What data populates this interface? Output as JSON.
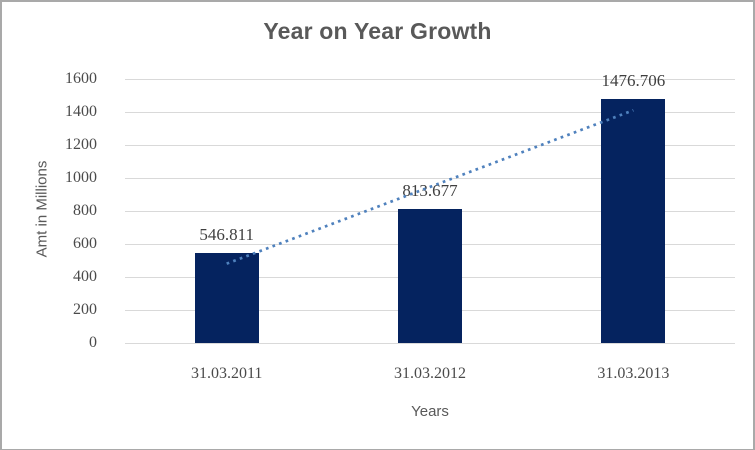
{
  "chart_data": {
    "type": "bar",
    "title": "Year on Year Growth",
    "xlabel": "Years",
    "ylabel": "Amt in Millions",
    "categories": [
      "31.03.2011",
      "31.03.2012",
      "31.03.2013"
    ],
    "values": [
      546.811,
      813.677,
      1476.706
    ],
    "data_labels": [
      "546.811",
      "813.677",
      "1476.706"
    ],
    "ylim": [
      0,
      1600
    ],
    "ytick_step": 200,
    "yticks": [
      0,
      200,
      400,
      600,
      800,
      1000,
      1200,
      1400,
      1600
    ],
    "grid": "horizontal",
    "legend": "none",
    "trendline": {
      "type": "linear",
      "style": "dotted",
      "color": "#4f81bd"
    },
    "colors": {
      "bar": "#05235f",
      "gridline": "#d9d9d9",
      "title_text": "#595959",
      "tick_text": "#4a4a4a",
      "data_label_text": "#3f3f3f",
      "background": "#ffffff",
      "border": "#a9a9a9"
    }
  }
}
